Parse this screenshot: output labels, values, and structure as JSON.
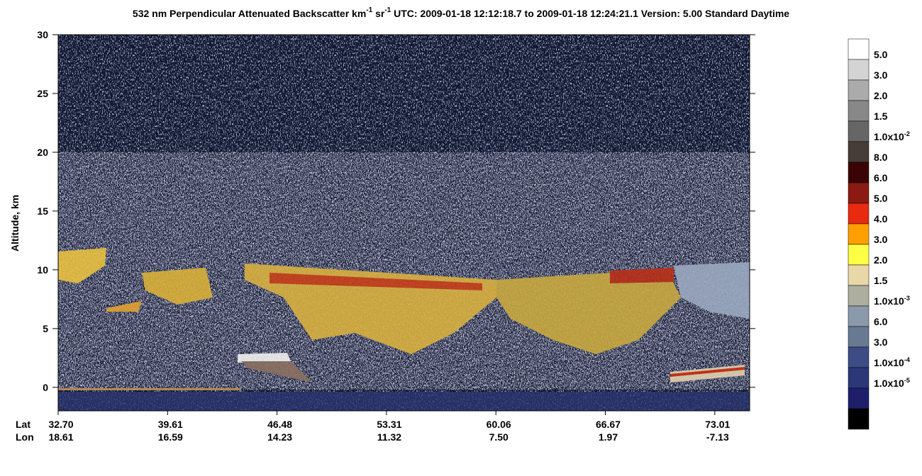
{
  "chart_data": {
    "type": "curtain",
    "title": [
      "532 nm Perpendicular Attenuated Backscatter km",
      "-1",
      " sr",
      "-1",
      "  UTC: 2009-01-18 12:12:18.7 to 2009-01-18 12:24:21.1  Version: 5.00 Standard Daytime"
    ],
    "ylabel": "Altitude, km",
    "ylim": [
      -2,
      30
    ],
    "yticks": [
      0,
      5,
      10,
      15,
      20,
      25,
      30
    ],
    "x_row_labels": [
      "Lat",
      "Lon"
    ],
    "lat": [
      "32.70",
      "39.61",
      "46.48",
      "53.31",
      "60.06",
      "66.67",
      "73.01"
    ],
    "lon": [
      "18.61",
      "16.59",
      "14.23",
      "11.32",
      "7.50",
      "1.97",
      "-7.13"
    ],
    "colorbar": {
      "colors": [
        "#ffffff",
        "#d4d4d4",
        "#ababab",
        "#888888",
        "#666666",
        "#463c38",
        "#3a0404",
        "#8b1a12",
        "#e82a10",
        "#ffa000",
        "#ffff44",
        "#e8d8a8",
        "#aeae9e",
        "#8a9aaa",
        "#687a92",
        "#3c4c84",
        "#2a3878",
        "#1e1e6a",
        "#000000"
      ],
      "labels": [
        "5.0",
        "3.0",
        "2.0",
        "1.5",
        {
          "base": "1.0x10",
          "exp": "-2"
        },
        "8.0",
        "6.0",
        "5.0",
        "4.0",
        "3.0",
        "2.0",
        "1.5",
        {
          "base": "1.0x10",
          "exp": "-3"
        },
        "6.0",
        "3.0",
        {
          "base": "1.0x10",
          "exp": "-4"
        },
        {
          "base": "1.0x10",
          "exp": "-5"
        }
      ]
    }
  }
}
